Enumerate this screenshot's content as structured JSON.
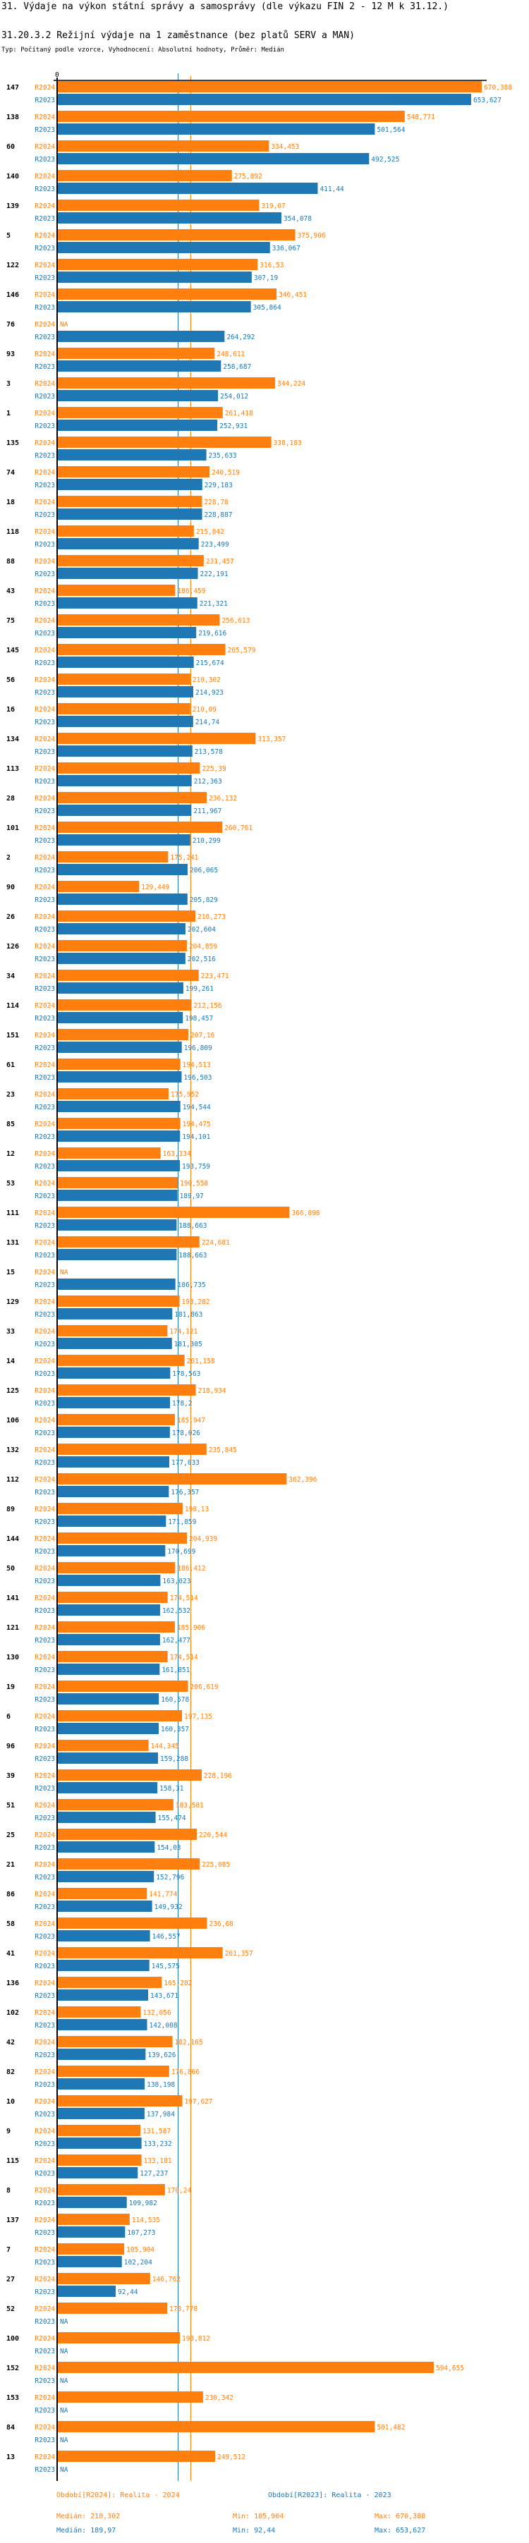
{
  "header": {
    "title": "31. Výdaje na výkon státní správy a samosprávy (dle výkazu FIN 2 - 12 M k 31.12.)",
    "subtitle": "31.20.3.2 Režijní výdaje na 1 zaměstnance (bez platů SERV a MAN)",
    "meta": "Typ: Počítaný podle vzorce, Vyhodnocení: Absolutní hodnoty, Průměr: Medián"
  },
  "colors": {
    "r2024": "#ff7f0e",
    "r2023": "#1f77b4",
    "axis": "#000000"
  },
  "chart_data": {
    "type": "bar",
    "orientation": "horizontal",
    "title": "31.20.3.2 Režijní výdaje na 1 zaměstnance (bez platů SERV a MAN)",
    "xlabel": "",
    "ylabel": "",
    "axis_zero_label": "0",
    "xlim": [
      0,
      670.388
    ],
    "grid": false,
    "na_label": "NA",
    "series_names": [
      "R2024",
      "R2023"
    ],
    "categories": [
      "147",
      "138",
      "60",
      "140",
      "139",
      "5",
      "122",
      "146",
      "76",
      "93",
      "3",
      "1",
      "135",
      "74",
      "18",
      "118",
      "88",
      "43",
      "75",
      "145",
      "56",
      "16",
      "134",
      "113",
      "28",
      "101",
      "2",
      "90",
      "26",
      "126",
      "34",
      "114",
      "151",
      "61",
      "23",
      "85",
      "12",
      "53",
      "111",
      "131",
      "15",
      "129",
      "33",
      "14",
      "125",
      "106",
      "132",
      "112",
      "89",
      "144",
      "50",
      "141",
      "121",
      "130",
      "19",
      "6",
      "96",
      "39",
      "51",
      "25",
      "21",
      "86",
      "58",
      "41",
      "136",
      "102",
      "42",
      "82",
      "10",
      "9",
      "115",
      "8",
      "137",
      "7",
      "27",
      "52",
      "100",
      "152",
      "153",
      "84",
      "13"
    ],
    "series": [
      {
        "name": "R2024",
        "values": [
          670.388,
          548.771,
          334.453,
          275.892,
          319.07,
          375.906,
          316.53,
          346.451,
          null,
          248.611,
          344.224,
          261.418,
          338.183,
          240.519,
          228.78,
          215.842,
          231.457,
          186.459,
          256.613,
          265.579,
          210.302,
          210.09,
          313.357,
          225.39,
          236.132,
          260.761,
          175.241,
          129.449,
          218.273,
          204.859,
          223.471,
          212.156,
          207.16,
          194.513,
          175.952,
          194.475,
          163.334,
          190.558,
          366.898,
          224.681,
          null,
          193.282,
          174.121,
          201.158,
          218.934,
          185.947,
          235.845,
          362.396,
          198.13,
          204.939,
          186.412,
          174.514,
          185.906,
          174.514,
          206.619,
          197.135,
          144.345,
          228.196,
          183.581,
          220.544,
          225.085,
          141.774,
          236.68,
          261.357,
          165.202,
          132.056,
          182.165,
          176.866,
          197.627,
          131.587,
          133.181,
          170.24,
          114.535,
          105.904,
          146.762,
          173.778,
          193.812,
          594.655,
          230.342,
          501.482,
          249.512
        ],
        "labels": [
          "670,388",
          "548,771",
          "334,453",
          "275,892",
          "319,07",
          "375,906",
          "316,53",
          "346,451",
          "NA",
          "248,611",
          "344,224",
          "261,418",
          "338,183",
          "240,519",
          "228,78",
          "215,842",
          "231,457",
          "186,459",
          "256,613",
          "265,579",
          "210,302",
          "210,09",
          "313,357",
          "225,39",
          "236,132",
          "260,761",
          "175,241",
          "129,449",
          "218,273",
          "204,859",
          "223,471",
          "212,156",
          "207,16",
          "194,513",
          "175,952",
          "194,475",
          "163,334",
          "190,558",
          "366,898",
          "224,681",
          "NA",
          "193,282",
          "174,121",
          "201,158",
          "218,934",
          "185,947",
          "235,845",
          "362,396",
          "198,13",
          "204,939",
          "186,412",
          "174,514",
          "185,906",
          "174,514",
          "206,619",
          "197,135",
          "144,345",
          "228,196",
          "183,581",
          "220,544",
          "225,085",
          "141,774",
          "236,68",
          "261,357",
          "165,202",
          "132,056",
          "182,165",
          "176,866",
          "197,627",
          "131,587",
          "133,181",
          "170,24",
          "114,535",
          "105,904",
          "146,762",
          "173,778",
          "193,812",
          "594,655",
          "230,342",
          "501,482",
          "249,512"
        ]
      },
      {
        "name": "R2023",
        "values": [
          653.627,
          501.564,
          492.525,
          411.44,
          354.078,
          336.067,
          307.19,
          305.864,
          264.292,
          258.687,
          254.012,
          252.931,
          235.633,
          229.183,
          228.887,
          223.499,
          222.191,
          221.321,
          219.616,
          215.674,
          214.923,
          214.74,
          213.578,
          212.363,
          211.967,
          210.299,
          206.065,
          205.829,
          202.604,
          202.516,
          199.261,
          198.457,
          196.809,
          196.503,
          194.544,
          194.101,
          193.759,
          189.97,
          188.663,
          188.663,
          186.735,
          181.863,
          181.305,
          178.563,
          178.2,
          178.026,
          177.033,
          176.357,
          171.859,
          170.699,
          163.023,
          162.532,
          162.477,
          161.851,
          160.578,
          160.357,
          159.288,
          158.31,
          155.474,
          154.03,
          152.796,
          149.932,
          146.557,
          145.575,
          143.671,
          142.008,
          139.626,
          138.198,
          137.984,
          133.232,
          127.237,
          109.982,
          107.273,
          102.204,
          92.44,
          null,
          null,
          null,
          null,
          null,
          null
        ],
        "labels": [
          "653,627",
          "501,564",
          "492,525",
          "411,44",
          "354,078",
          "336,067",
          "307,19",
          "305,864",
          "264,292",
          "258,687",
          "254,012",
          "252,931",
          "235,633",
          "229,183",
          "228,887",
          "223,499",
          "222,191",
          "221,321",
          "219,616",
          "215,674",
          "214,923",
          "214,74",
          "213,578",
          "212,363",
          "211,967",
          "210,299",
          "206,065",
          "205,829",
          "202,604",
          "202,516",
          "199,261",
          "198,457",
          "196,809",
          "196,503",
          "194,544",
          "194,101",
          "193,759",
          "189,97",
          "188,663",
          "188,663",
          "186,735",
          "181,863",
          "181,305",
          "178,563",
          "178,2",
          "178,026",
          "177,033",
          "176,357",
          "171,859",
          "170,699",
          "163,023",
          "162,532",
          "162,477",
          "161,851",
          "160,578",
          "160,357",
          "159,288",
          "158,31",
          "155,474",
          "154,03",
          "152,796",
          "149,932",
          "146,557",
          "145,575",
          "143,671",
          "142,008",
          "139,626",
          "138,198",
          "137,984",
          "133,232",
          "127,237",
          "109,982",
          "107,273",
          "102,204",
          "92,44",
          "NA",
          "NA",
          "NA",
          "NA",
          "NA",
          "NA"
        ]
      }
    ],
    "reference_lines": [
      {
        "series": "R2024",
        "kind": "median",
        "value": 210.302
      },
      {
        "series": "R2023",
        "kind": "median",
        "value": 189.97
      }
    ]
  },
  "legend": {
    "r2024_period": "Období[R2024]: Realita - 2024",
    "r2023_period": "Období[R2023]: Realita - 2023",
    "r2024_median": "Medián: 210,302",
    "r2024_min": "Min: 105,904",
    "r2024_max": "Max: 670,388",
    "r2023_median": "Medián: 189,97",
    "r2023_min": "Min: 92,44",
    "r2023_max": "Max: 653,627"
  }
}
